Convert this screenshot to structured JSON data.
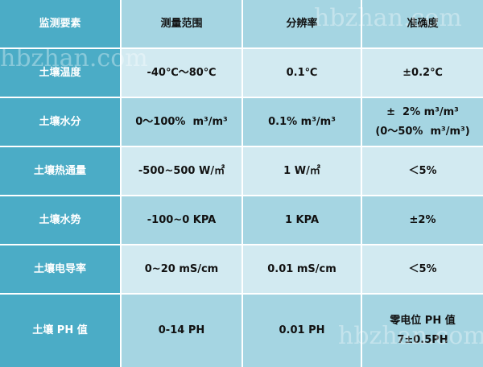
{
  "watermark": "hbzhan.com",
  "table": {
    "header": [
      "监测要素",
      "测量范围",
      "分辨率",
      "准确度"
    ],
    "rows": [
      [
        "土壤温度",
        "-40℃～80℃",
        "0.1℃",
        "±0.2℃"
      ],
      [
        "土壤水分",
        "0～100%  m³/m³",
        "0.1% m³/m³",
        [
          "±  2% m³/m³",
          "(0～50%  m³/m³)"
        ]
      ],
      [
        "土壤热通量",
        "-500~500 W/㎡",
        "1 W/㎡",
        "＜5%"
      ],
      [
        "土壤水势",
        "-100~0 KPA",
        "1 KPA",
        "±2%"
      ],
      [
        "土壤电导率",
        "0~20 mS/cm",
        "0.01 mS/cm",
        "＜5%"
      ],
      [
        "土壤 PH 值",
        "0-14 PH",
        "0.01 PH",
        [
          "零电位 PH 值",
          "7±0.5PH"
        ]
      ]
    ]
  }
}
